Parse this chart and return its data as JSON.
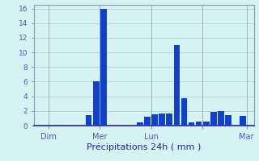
{
  "bar_positions": [
    0,
    1,
    2,
    3,
    4,
    5,
    6,
    7,
    8,
    9,
    10,
    11,
    12,
    13,
    14,
    15,
    16,
    17,
    18,
    19,
    20,
    21,
    22,
    23,
    24,
    25,
    26,
    27,
    28,
    29
  ],
  "bar_heights": [
    0,
    0,
    0,
    0,
    0,
    0,
    0,
    1.4,
    6.0,
    16.0,
    0,
    0,
    0,
    0,
    0.4,
    1.2,
    1.5,
    1.6,
    1.6,
    11.0,
    3.7,
    0.4,
    0.5,
    0.5,
    1.9,
    2.0,
    1.4,
    0,
    1.3,
    0
  ],
  "xlim": [
    -0.5,
    29.5
  ],
  "day_tick_positions": [
    1.5,
    8.5,
    15.5,
    22.5,
    28.5
  ],
  "day_tick_labels": [
    "Dim",
    "Mer",
    "Lun",
    "",
    "Mar"
  ],
  "xlabel": "Précipitations 24h ( mm )",
  "ylim": [
    0,
    16.5
  ],
  "yticks": [
    0,
    2,
    4,
    6,
    8,
    10,
    12,
    14,
    16
  ],
  "bar_color": "#1040cc",
  "background_color": "#d6f3f3",
  "grid_color": "#b0c8c8",
  "xlabel_color": "#2222aa",
  "tick_label_color": "#5555bb",
  "spine_color": "#8899aa",
  "bottom_spine_color": "#2222aa"
}
